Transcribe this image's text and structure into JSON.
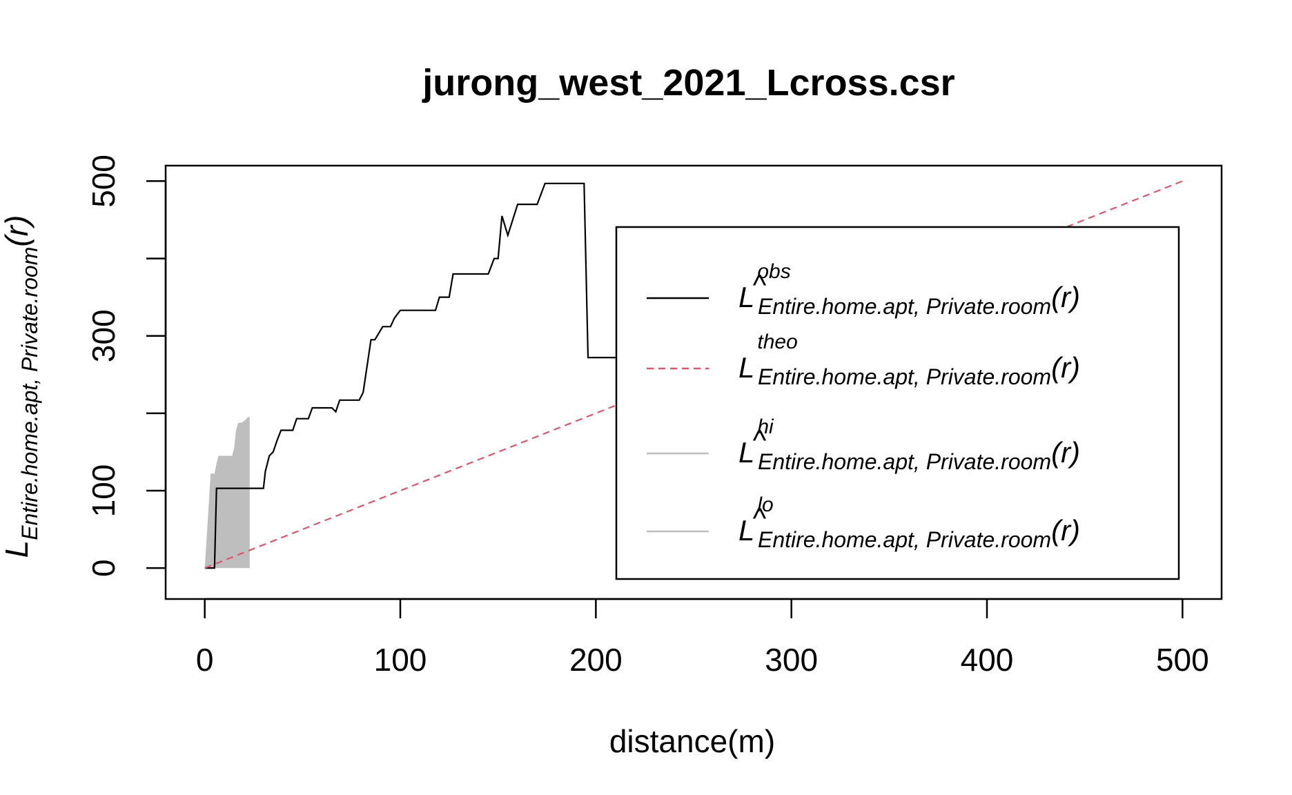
{
  "chart_data": {
    "type": "line",
    "title": "jurong_west_2021_Lcross.csr",
    "xlabel": "distance(m)",
    "ylabel": {
      "main": "L",
      "subscript": "Entire.home.apt, Private.room",
      "arg": "(r)"
    },
    "xlim": [
      -20,
      520
    ],
    "ylim": [
      -40,
      520
    ],
    "x_ticks": [
      0,
      100,
      200,
      300,
      400,
      500
    ],
    "y_ticks": [
      0,
      100,
      200,
      300,
      400,
      500
    ],
    "y_tick_labels": [
      "0",
      "100",
      "",
      "300",
      "",
      "500"
    ],
    "grid": false,
    "legend_position": "right",
    "colors": {
      "obs": "#000000",
      "theo": "#DF536B",
      "envelope": "#BEBEBE"
    },
    "legend": [
      {
        "hat": "^",
        "main": "L",
        "sup": "obs",
        "sub": "Entire.home.apt, Private.room",
        "arg": "(r)",
        "style": "solid",
        "color": "#000000"
      },
      {
        "hat": "",
        "main": "L",
        "sup": "theo",
        "sub": "Entire.home.apt, Private.room",
        "arg": "(r)",
        "style": "dashed",
        "color": "#DF536B"
      },
      {
        "hat": "^",
        "main": "L",
        "sup": "hi",
        "sub": "Entire.home.apt, Private.room",
        "arg": "(r)",
        "style": "solid",
        "color": "#BEBEBE"
      },
      {
        "hat": "^",
        "main": "L",
        "sup": "lo",
        "sub": "Entire.home.apt, Private.room",
        "arg": "(r)",
        "style": "solid",
        "color": "#BEBEBE"
      }
    ],
    "series": [
      {
        "name": "obs",
        "x": [
          0,
          5,
          6,
          30,
          31,
          33,
          35,
          37,
          39,
          45,
          47,
          53,
          55,
          65,
          67,
          69,
          75,
          79,
          81,
          85,
          87,
          91,
          95,
          97,
          100,
          101,
          110,
          118,
          120,
          125,
          127,
          135,
          140,
          145,
          148,
          150,
          152,
          155,
          160,
          170,
          174,
          180,
          192,
          194,
          196,
          300
        ],
        "y": [
          0,
          0,
          103,
          103,
          125,
          145,
          150,
          165,
          178,
          178,
          193,
          193,
          207,
          207,
          202,
          217,
          217,
          217,
          227,
          295,
          295,
          312,
          312,
          323,
          333,
          333,
          333,
          333,
          350,
          350,
          380,
          380,
          380,
          380,
          400,
          400,
          455,
          430,
          470,
          470,
          497,
          497,
          497,
          497,
          272,
          272
        ]
      },
      {
        "name": "theo",
        "x": [
          0,
          500
        ],
        "y": [
          0,
          500
        ]
      }
    ],
    "envelope": {
      "x": [
        0,
        1,
        2,
        3,
        4,
        5,
        6,
        7,
        8,
        9,
        10,
        11,
        12,
        13,
        14,
        15,
        16,
        17,
        18,
        19,
        20,
        21,
        22,
        23
      ],
      "hi": [
        0,
        40,
        80,
        122,
        122,
        122,
        135,
        145,
        145,
        145,
        145,
        145,
        145,
        145,
        145,
        155,
        178,
        187,
        188,
        188,
        190,
        192,
        195,
        195
      ],
      "lo": [
        0,
        0,
        0,
        0,
        0,
        0,
        0,
        0,
        0,
        0,
        0,
        0,
        0,
        0,
        0,
        0,
        0,
        0,
        0,
        0,
        0,
        0,
        0,
        0
      ]
    }
  }
}
